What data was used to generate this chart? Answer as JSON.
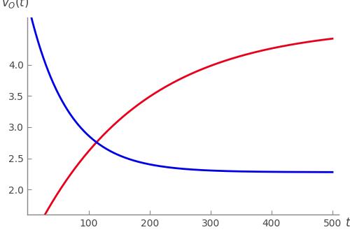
{
  "title": "",
  "xlabel": "t",
  "ylabel": "v_O(t)",
  "xlim": [
    0,
    510
  ],
  "ylim": [
    1.6,
    4.75
  ],
  "xticks": [
    100,
    200,
    300,
    400,
    500
  ],
  "yticks": [
    2.0,
    2.5,
    3.0,
    3.5,
    4.0
  ],
  "red_color": "#e8001c",
  "blue_color": "#0000e8",
  "line_width": 2.0,
  "red_A": 4.62,
  "red_B": 3.55,
  "red_tau": 175.0,
  "blue_A": 2.28,
  "blue_B": 2.72,
  "blue_tau": 65.0,
  "t_start": 0.5,
  "t_end": 500,
  "n_points": 5000,
  "figsize": [
    5.0,
    3.32
  ],
  "dpi": 100,
  "spine_color": "#888888",
  "tick_color": "#888888",
  "label_color": "#444444"
}
